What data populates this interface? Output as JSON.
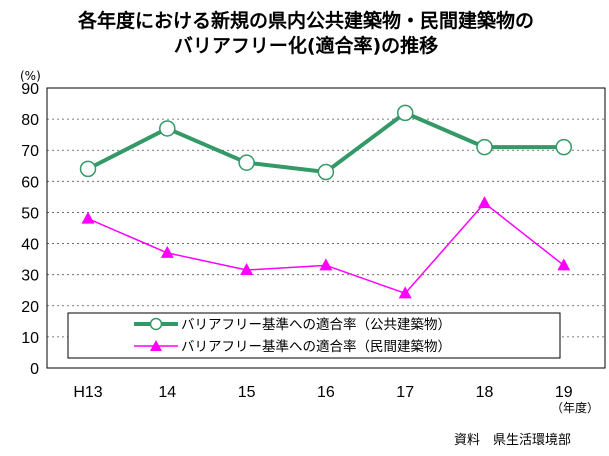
{
  "chart_data": {
    "type": "line",
    "title": "各年度における新規の県内公共建築物・民間建築物の",
    "title_line2": "バリアフリー化(適合率)の推移",
    "y_unit": "(%)",
    "x_unit": "（年度）",
    "categories": [
      "H13",
      "14",
      "15",
      "16",
      "17",
      "18",
      "19"
    ],
    "ylim": [
      0,
      90
    ],
    "yticks": [
      0,
      10,
      20,
      30,
      40,
      50,
      60,
      70,
      80,
      90
    ],
    "grid": "horizontal dashed",
    "legend_position": "bottom-inside",
    "series": [
      {
        "name": "バリアフリー基準への適合率（公共建築物）",
        "values": [
          64,
          77,
          66,
          63,
          82,
          71,
          71
        ],
        "color": "#339966",
        "marker": "circle"
      },
      {
        "name": "バリアフリー基準への適合率（民間建築物）",
        "values": [
          48,
          37,
          31.5,
          33,
          24,
          53,
          33
        ],
        "color": "#ff00ff",
        "marker": "triangle"
      }
    ]
  },
  "source_note": "資料　県生活環境部"
}
